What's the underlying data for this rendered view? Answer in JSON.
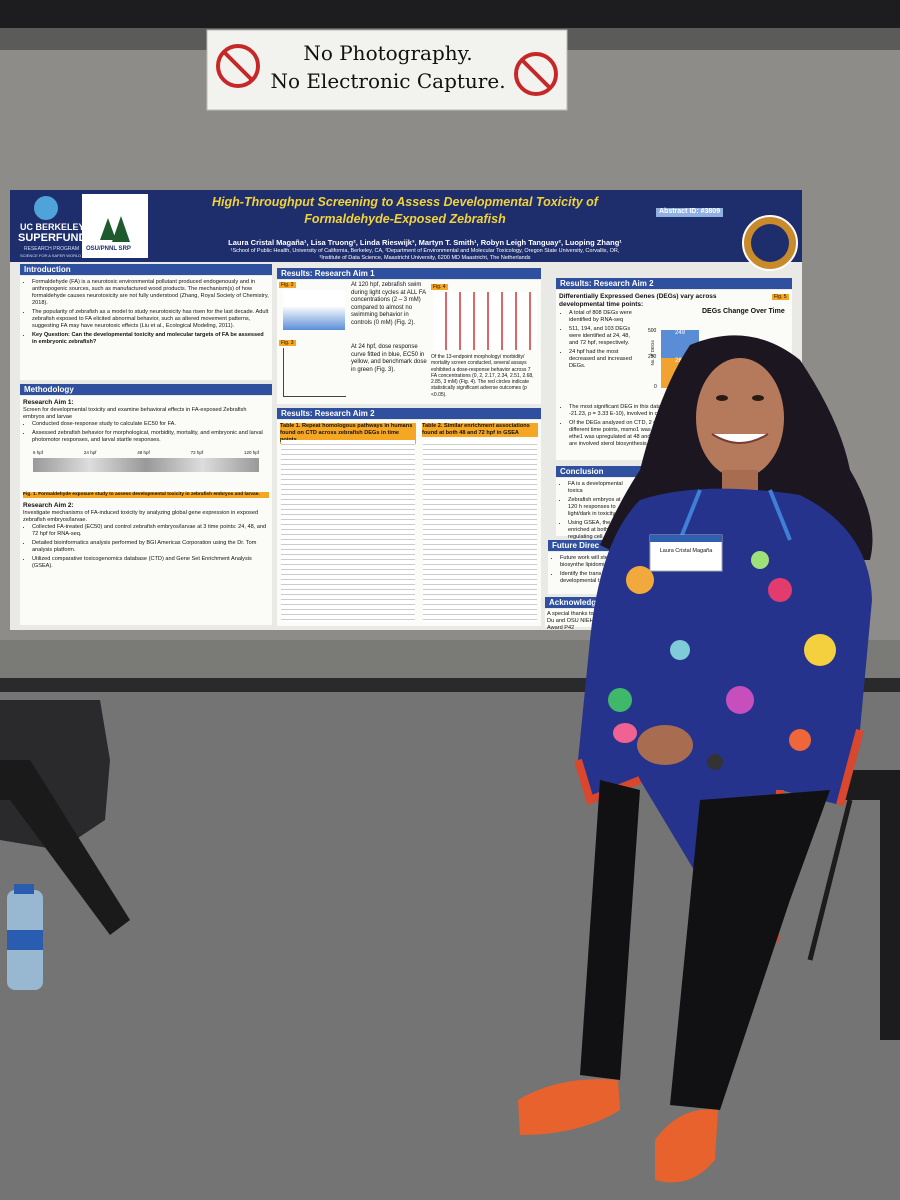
{
  "sign": {
    "line1": "No Photography.",
    "line2": "No Electronic Capture."
  },
  "poster": {
    "logos": {
      "left_top": "UC BERKELEY",
      "left_main": "SUPERFUND",
      "left_sub": "RESEARCH PROGRAM",
      "left_tag": "SCIENCE FOR A SAFER WORLD",
      "right": "OSU/PNNL SRP"
    },
    "title_line1": "High-Throughput Screening to Assess Developmental Toxicity of",
    "title_line2": "Formaldehyde-Exposed Zebrafish",
    "abstract_id": "Abstract ID: #3809",
    "authors": "Laura Cristal Magaña¹, Lisa Truong², Linda Rieswijk³, Martyn T. Smith¹, Robyn Leigh Tanguay², Luoping Zhang¹",
    "affiliations": [
      "¹School of Public Health, University of California, Berkeley, CA, ²Department of Environmental and Molecular Toxicology, Oregon State University, Corvallis, OR,",
      "³Institute of Data Science, Maastricht University, 6200 MD Maastricht, The Netherlands"
    ],
    "introduction": {
      "heading": "Introduction",
      "bullets": [
        "Formaldehyde (FA) is a neurotoxic environmental pollutant produced endogenously and in anthropogenic sources, such as manufactured wood products. The mechanism(s) of how formaldehyde causes neurotoxicity are not fully understood (Zhang, Royal Society of Chemistry, 2018).",
        "The popularity of zebrafish as a model to study neurotoxicity has risen for the last decade. Adult zebrafish exposed to FA elicited abnormal behavior, such as altered movement patterns, suggesting FA may have neurotoxic effects (Liu et al., Ecological Modeling, 2011).",
        "Key Question: Can the developmental toxicity and molecular targets of FA be assessed in embryonic zebrafish?"
      ]
    },
    "methodology": {
      "heading": "Methodology",
      "aim1_label": "Research Aim 1:",
      "aim1_text": "Screen for developmental toxicity and examine behavioral effects in FA-exposed Zebrafish embryos and larvae",
      "aim1_bullets": [
        "Conducted dose-response study to calculate EC50 for FA.",
        "Assessed zebrafish behavior for morphological, morbidity, mortality, and embryonic and larval photomotor responses, and larval startle responses."
      ],
      "timeline": [
        "6 hpf",
        "24 hpf",
        "48 hpf",
        "72 hpf",
        "120 hpf"
      ],
      "fig_caption": "Fig. 1. Formaldehyde exposure study to assess developmental toxicity in zebrafish embryos and larvae.",
      "aim2_label": "Research Aim 2:",
      "aim2_text": "Investigate mechanisms of FA-induced toxicity by analyzing global gene expression in exposed zebrafish embryos/larvae.",
      "aim2_bullets": [
        "Collected FA-treated (EC50) and control zebrafish embryos/larvae at 3 time points: 24, 48, and 72 hpf for RNA-seq.",
        "Detailed bioinformatics analysis performed by BGI Americas Corporation using the Dr. Tom analysis platform.",
        "Utilized comparative toxicogenomics database (CTD) and Gene Set Enrichment Analysis (GSEA)."
      ]
    },
    "aim1": {
      "heading": "Results: Research Aim 1",
      "fig2": "Fig. 2",
      "fig3": "Fig. 3",
      "fig4": "Fig. 4",
      "text1": "At 120 hpf, zebrafish swim during light cycles at ALL FA concentrations (2 – 3 mM) compared to almost no swimming behavior in controls (0 mM) (Fig. 2).",
      "text2": "At 24 hpf, dose response curve fitted in blue, EC50 in yellow, and benchmark dose in green (Fig. 3).",
      "text3": "Of the 13-endpoint morphology/ morbidity/ mortality screen conducted, several assays exhibited a dose-response behavior across 7 FA concentrations (0, 2, 2.17, 2.34, 2.51, 2.68, 2.85, 3 mM) (Fig. 4). The red circles indicate statistically significant adverse outcomes (p <0.05)."
    },
    "aim2_tables": {
      "heading": "Results: Research Aim 2",
      "table1": "Table 1. Repeat homologous pathways in humans found on CTD across zebrafish DEGs in time points",
      "table2": "Table 2. Similar enrichment associations found at both 48 and 72 hpf in GSEA"
    },
    "aim2_degs": {
      "heading": "Results: Research Aim 2",
      "subheading": "Differentially Expressed Genes (DEGs) vary across developmental time points:",
      "fig5": "Fig. 5",
      "chart_title": "DEGs Change Over Time",
      "chart_axis": "No. of DEGs",
      "chart_ticks": [
        "500",
        "250",
        "0"
      ],
      "chart_labels": [
        "249",
        "262"
      ],
      "bullets": [
        "A total of 808 DEGs were identified by RNA-seq",
        "511, 194, and 103 DEGs were identified at 24, 48, and 72 hpf, respectively.",
        "24 hpf had the most decreased and increased DEGs.",
        "The most significant DEG in this dataset",
        "-21.23, p = 3.33 E-10), involved in c",
        "Of the DEGs analyzed on CTD, 2 g",
        "different time points, msmo1 was",
        "ethe1 was upregulated at 48 and 7",
        "are involved sterol biosynthesis"
      ]
    },
    "conclusion": {
      "heading": "Conclusion",
      "bullets": [
        "FA is a developmental toxica",
        "Zebrafish embryos at 120 h responses to light/dark in toxicity.",
        "Using GSEA, the fatt enriched at both 48 in regulating cell"
      ]
    },
    "future": {
      "heading": "Future Direc",
      "bullets": [
        "Future work will sterol biosynthe lipidomics.",
        "Identify the trans developmental t"
      ]
    },
    "acknowledgements": {
      "heading": "Acknowledg",
      "text": "A special thanks to La Du and OSU NIEHS Award P42"
    }
  },
  "badge": {
    "name": "Laura Cristal Magaña"
  }
}
